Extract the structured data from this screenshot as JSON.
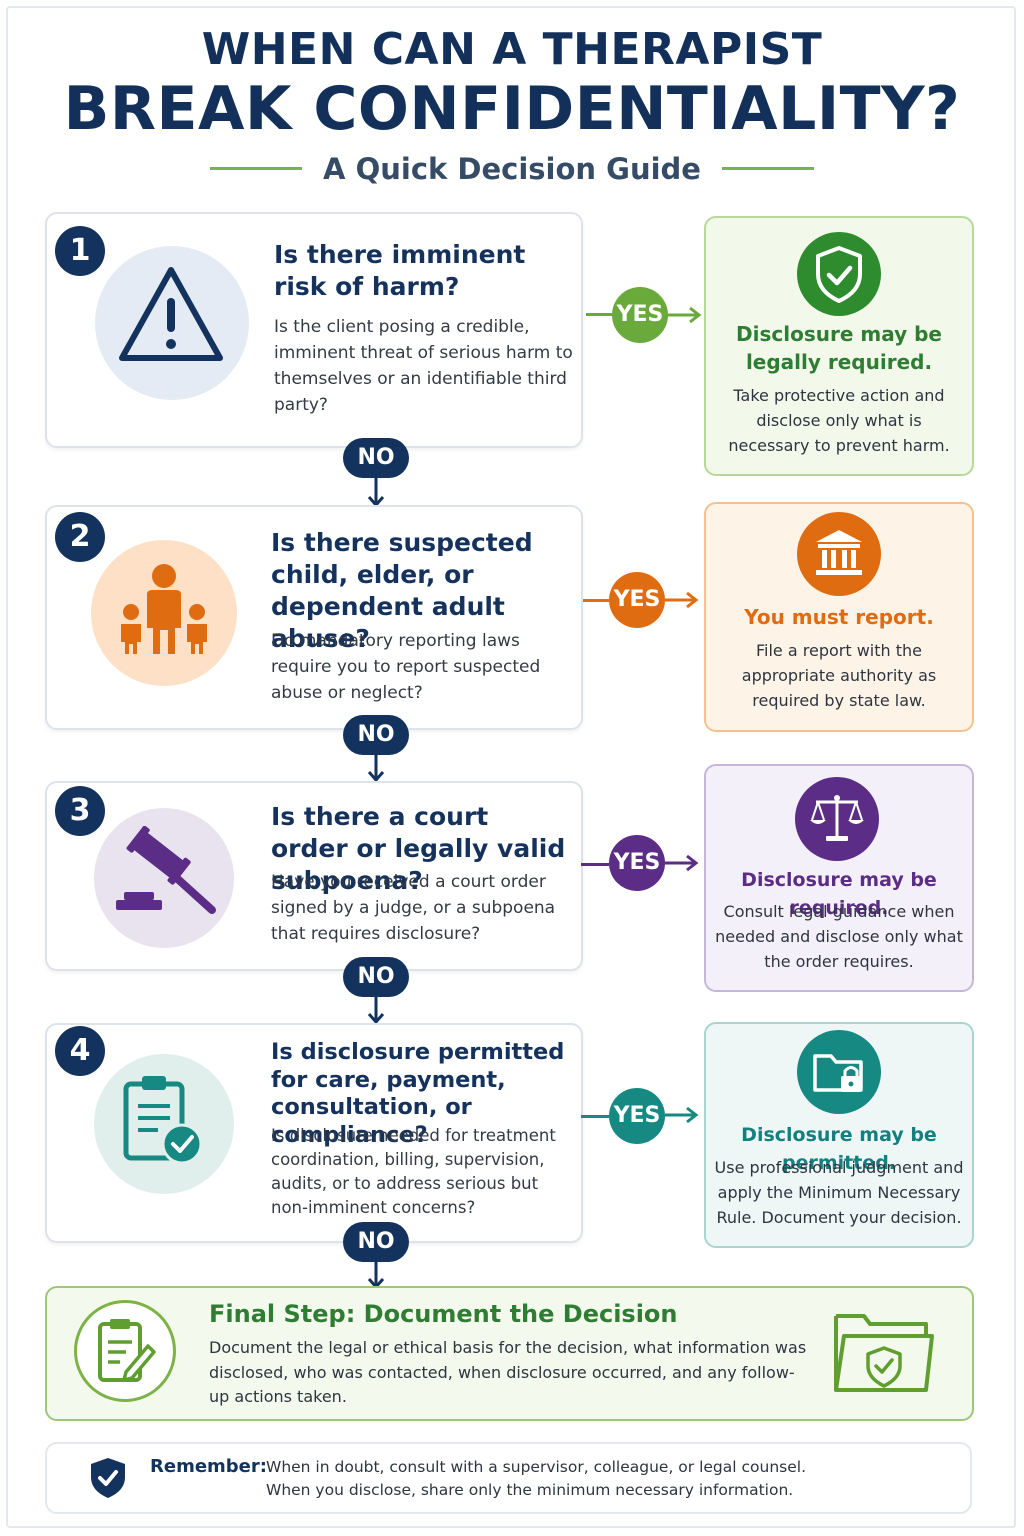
{
  "header": {
    "title_line1": "WHEN CAN A THERAPIST",
    "title_line2": "BREAK CONFIDENTIALITY?",
    "subtitle": "A Quick Decision Guide"
  },
  "colors": {
    "navy": "#13325d",
    "green": "#2e7d32",
    "orange": "#e06c12",
    "purple": "#5b2d86",
    "teal": "#147f7f"
  },
  "connector_labels": {
    "no": "NO",
    "yes": "YES"
  },
  "steps": [
    {
      "number": "1",
      "icon": "warning-triangle-icon",
      "question": "Is there imminent risk of harm?",
      "detail": "Is the client posing a credible, imminent threat of serious harm to themselves or an identifiable third party?",
      "answer": {
        "icon": "shield-check-icon",
        "title": "Disclosure may be legally required.",
        "text": "Take protective action and disclose only what is necessary to prevent harm."
      }
    },
    {
      "number": "2",
      "icon": "family-icon",
      "question": "Is there suspected child, elder, or dependent adult abuse?",
      "detail": "Do mandatory reporting laws require you to report suspected abuse or neglect?",
      "answer": {
        "icon": "government-building-icon",
        "title": "You must report.",
        "text": "File a report with the appropriate authority as required by state law."
      }
    },
    {
      "number": "3",
      "icon": "gavel-icon",
      "question": "Is there a court order or legally valid subpoena?",
      "detail": "Have you received a court order signed by a judge, or a subpoena that requires disclosure?",
      "answer": {
        "icon": "scales-icon",
        "title": "Disclosure may be required.",
        "text": "Consult legal guidance when needed and disclose only what the order requires."
      }
    },
    {
      "number": "4",
      "icon": "clipboard-check-icon",
      "question": "Is disclosure permitted for care, payment, consultation, or compliance?",
      "detail": "Is disclosure needed for treatment coordination, billing, supervision, audits, or to address serious but non-imminent concerns?",
      "answer": {
        "icon": "locked-folder-icon",
        "title": "Disclosure may be permitted.",
        "text": "Use professional judgment and apply the Minimum Necessary Rule. Document your decision."
      }
    }
  ],
  "final_step": {
    "title": "Final Step: Document the Decision",
    "text": "Document the legal or ethical basis for the decision, what information was disclosed, who was contacted, when disclosure occurred, and any follow-up actions taken."
  },
  "remember": {
    "label": "Remember:",
    "line1": "When in doubt, consult with a supervisor, colleague, or legal counsel.",
    "line2": "When you disclose, share only the minimum necessary information."
  }
}
